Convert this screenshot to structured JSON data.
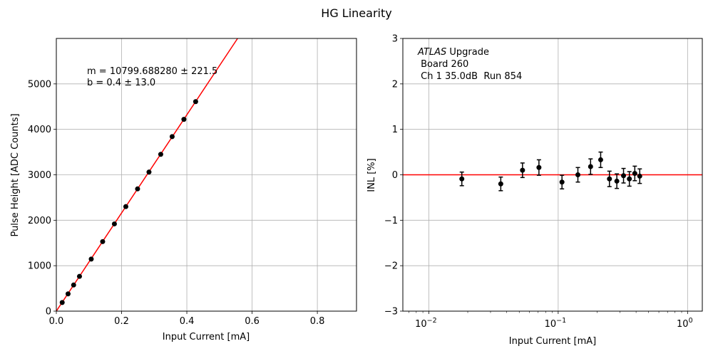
{
  "figure": {
    "title": "HG Linearity"
  },
  "chart_data": [
    {
      "type": "scatter",
      "xlabel": "Input Current [mA]",
      "ylabel": "Pulse Height [ADC Counts]",
      "xlim": [
        0,
        0.92
      ],
      "ylim": [
        0,
        6000
      ],
      "xticks": [
        "0.0",
        "0.2",
        "0.4",
        "0.6",
        "0.8"
      ],
      "yticks": [
        "0",
        "1000",
        "2000",
        "3000",
        "4000",
        "5000"
      ],
      "grid": true,
      "annotation_lines": [
        "m = 10799.688280 ± 221.5",
        "b = 0.4 ± 13.0"
      ],
      "fit_line": {
        "slope": 10799.68828,
        "intercept": 0.4,
        "color": "#ff0000"
      },
      "series": [
        {
          "marker_color": "#000000",
          "x": [
            0.018,
            0.036,
            0.053,
            0.071,
            0.107,
            0.142,
            0.178,
            0.213,
            0.249,
            0.284,
            0.32,
            0.355,
            0.391,
            0.427
          ],
          "y": [
            190,
            380,
            575,
            765,
            1145,
            1530,
            1920,
            2300,
            2690,
            3060,
            3450,
            3840,
            4220,
            4610
          ]
        }
      ]
    },
    {
      "type": "scatter",
      "xlabel": "Input Current [mA]",
      "ylabel": "INL [%]",
      "xscale": "log",
      "xlim": [
        0.0063,
        1.3
      ],
      "ylim": [
        -3,
        3
      ],
      "xticks": [
        "10",
        "10",
        "10"
      ],
      "xtick_exponents": [
        "−2",
        "−1",
        "0"
      ],
      "yticks": [
        "−3",
        "−2",
        "−1",
        "0",
        "1",
        "2",
        "3"
      ],
      "grid": true,
      "annotation_lines": [
        "ATLAS Upgrade",
        " Board 260",
        " Ch 1 35.0dB  Run 854"
      ],
      "annotation_italic_word": "ATLAS",
      "annotation_rest": " Upgrade",
      "reference_line": {
        "y": 0,
        "color": "#ff0000"
      },
      "series": [
        {
          "marker_color": "#000000",
          "x": [
            0.018,
            0.036,
            0.053,
            0.071,
            0.107,
            0.142,
            0.178,
            0.213,
            0.249,
            0.284,
            0.32,
            0.355,
            0.391,
            0.427
          ],
          "y": [
            -0.09,
            -0.2,
            0.1,
            0.16,
            -0.16,
            0.0,
            0.18,
            0.33,
            -0.09,
            -0.14,
            -0.02,
            -0.09,
            0.03,
            -0.03
          ],
          "yerr": [
            0.15,
            0.15,
            0.16,
            0.17,
            0.15,
            0.16,
            0.17,
            0.17,
            0.17,
            0.16,
            0.16,
            0.16,
            0.16,
            0.16
          ]
        }
      ]
    }
  ]
}
